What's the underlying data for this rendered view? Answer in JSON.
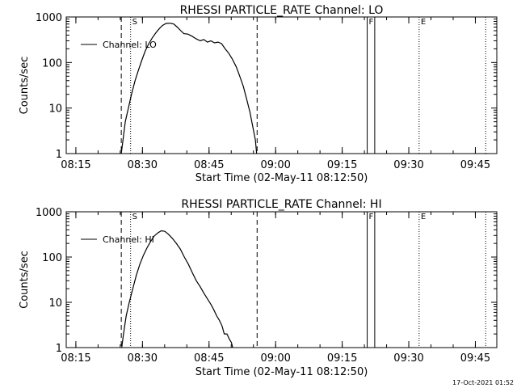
{
  "chart_data": [
    {
      "type": "line",
      "title": "RHESSI PARTICLE_RATE Channel: LO",
      "xlabel": "Start Time (02-May-11 08:12:50)",
      "ylabel": "Counts/sec",
      "yscale": "log",
      "xlim": [
        0,
        97
      ],
      "ylim": [
        1,
        1000
      ],
      "x_unit": "minutes after 08:12:50",
      "x_ticks": [
        {
          "x": 2.17,
          "label": "08:15"
        },
        {
          "x": 17.17,
          "label": "08:30"
        },
        {
          "x": 32.17,
          "label": "08:45"
        },
        {
          "x": 47.17,
          "label": "09:00"
        },
        {
          "x": 62.17,
          "label": "09:15"
        },
        {
          "x": 77.17,
          "label": "09:30"
        },
        {
          "x": 92.17,
          "label": "09:45"
        }
      ],
      "y_ticks": [
        {
          "y": 1,
          "label": "1"
        },
        {
          "y": 10,
          "label": "10"
        },
        {
          "y": 100,
          "label": "100"
        },
        {
          "y": 1000,
          "label": "1000"
        }
      ],
      "legend": {
        "label": "Channel: LO",
        "placement": "top-left"
      },
      "series": [
        {
          "name": "Channel: LO",
          "x": [
            12.4,
            12.8,
            13.3,
            14.0,
            14.7,
            15.5,
            16.3,
            17.0,
            17.8,
            18.6,
            19.4,
            20.2,
            21.0,
            21.7,
            22.5,
            23.4,
            24.2,
            25.0,
            25.8,
            26.5,
            27.4,
            28.3,
            29.3,
            30.2,
            31.0,
            31.8,
            32.6,
            33.4,
            34.2,
            35.0,
            35.8,
            36.6,
            37.4,
            38.3,
            39.1,
            39.9,
            40.7,
            41.4,
            42.0,
            42.6,
            42.9
          ],
          "y": [
            1.0,
            2.0,
            5.0,
            10.0,
            20.0,
            40.0,
            70.0,
            110.0,
            180.0,
            260.0,
            350.0,
            450.0,
            560.0,
            650.0,
            720.0,
            730.0,
            700.0,
            600.0,
            500.0,
            430.0,
            420.0,
            380.0,
            330.0,
            300.0,
            320.0,
            280.0,
            300.0,
            270.0,
            280.0,
            260.0,
            200.0,
            160.0,
            120.0,
            80.0,
            50.0,
            30.0,
            15.0,
            8.0,
            4.0,
            2.0,
            1.0
          ]
        }
      ],
      "markers": [
        {
          "x": 12.4,
          "style": "dashed",
          "label": ""
        },
        {
          "x": 14.5,
          "style": "dotted",
          "label": "S"
        },
        {
          "x": 43.0,
          "style": "dashed",
          "label": ""
        },
        {
          "x": 67.8,
          "style": "solid",
          "label": "F"
        },
        {
          "x": 69.5,
          "style": "solid",
          "label": ""
        },
        {
          "x": 79.5,
          "style": "dotted",
          "label": "E"
        },
        {
          "x": 94.5,
          "style": "dotted",
          "label": ""
        }
      ]
    },
    {
      "type": "line",
      "title": "RHESSI PARTICLE_RATE Channel: HI",
      "xlabel": "Start Time (02-May-11 08:12:50)",
      "ylabel": "Counts/sec",
      "yscale": "log",
      "xlim": [
        0,
        97
      ],
      "ylim": [
        1,
        1000
      ],
      "x_unit": "minutes after 08:12:50",
      "x_ticks": [
        {
          "x": 2.17,
          "label": "08:15"
        },
        {
          "x": 17.17,
          "label": "08:30"
        },
        {
          "x": 32.17,
          "label": "08:45"
        },
        {
          "x": 47.17,
          "label": "09:00"
        },
        {
          "x": 62.17,
          "label": "09:15"
        },
        {
          "x": 77.17,
          "label": "09:30"
        },
        {
          "x": 92.17,
          "label": "09:45"
        }
      ],
      "y_ticks": [
        {
          "y": 1,
          "label": "1"
        },
        {
          "y": 10,
          "label": "10"
        },
        {
          "y": 100,
          "label": "100"
        },
        {
          "y": 1000,
          "label": "1000"
        }
      ],
      "legend": {
        "label": "Channel: HI",
        "placement": "top-left"
      },
      "series": [
        {
          "name": "Channel: HI",
          "x": [
            12.5,
            12.9,
            13.5,
            14.2,
            15.0,
            15.8,
            16.6,
            17.4,
            18.2,
            19.0,
            19.8,
            20.6,
            21.4,
            22.2,
            23.0,
            23.9,
            24.8,
            25.7,
            26.6,
            27.5,
            28.4,
            29.3,
            30.2,
            31.0,
            31.8,
            32.6,
            33.2,
            33.9,
            34.5,
            35.1,
            35.6,
            36.2,
            36.8,
            37.2,
            37.5
          ],
          "y": [
            1.0,
            2.0,
            5.0,
            10.0,
            20.0,
            40.0,
            70.0,
            110.0,
            160.0,
            220.0,
            290.0,
            340.0,
            380.0,
            370.0,
            320.0,
            260.0,
            200.0,
            150.0,
            100.0,
            70.0,
            45.0,
            30.0,
            22.0,
            16.0,
            12.0,
            9.0,
            7.0,
            5.0,
            4.0,
            3.0,
            2.0,
            2.0,
            1.5,
            1.3,
            1.0
          ]
        }
      ],
      "markers": [
        {
          "x": 12.4,
          "style": "dashed",
          "label": ""
        },
        {
          "x": 14.5,
          "style": "dotted",
          "label": "S"
        },
        {
          "x": 43.0,
          "style": "dashed",
          "label": ""
        },
        {
          "x": 67.8,
          "style": "solid",
          "label": "F"
        },
        {
          "x": 69.5,
          "style": "solid",
          "label": ""
        },
        {
          "x": 79.5,
          "style": "dotted",
          "label": "E"
        },
        {
          "x": 94.5,
          "style": "dotted",
          "label": ""
        }
      ]
    }
  ],
  "footer": {
    "timestamp": "17-Oct-2021 01:52"
  }
}
